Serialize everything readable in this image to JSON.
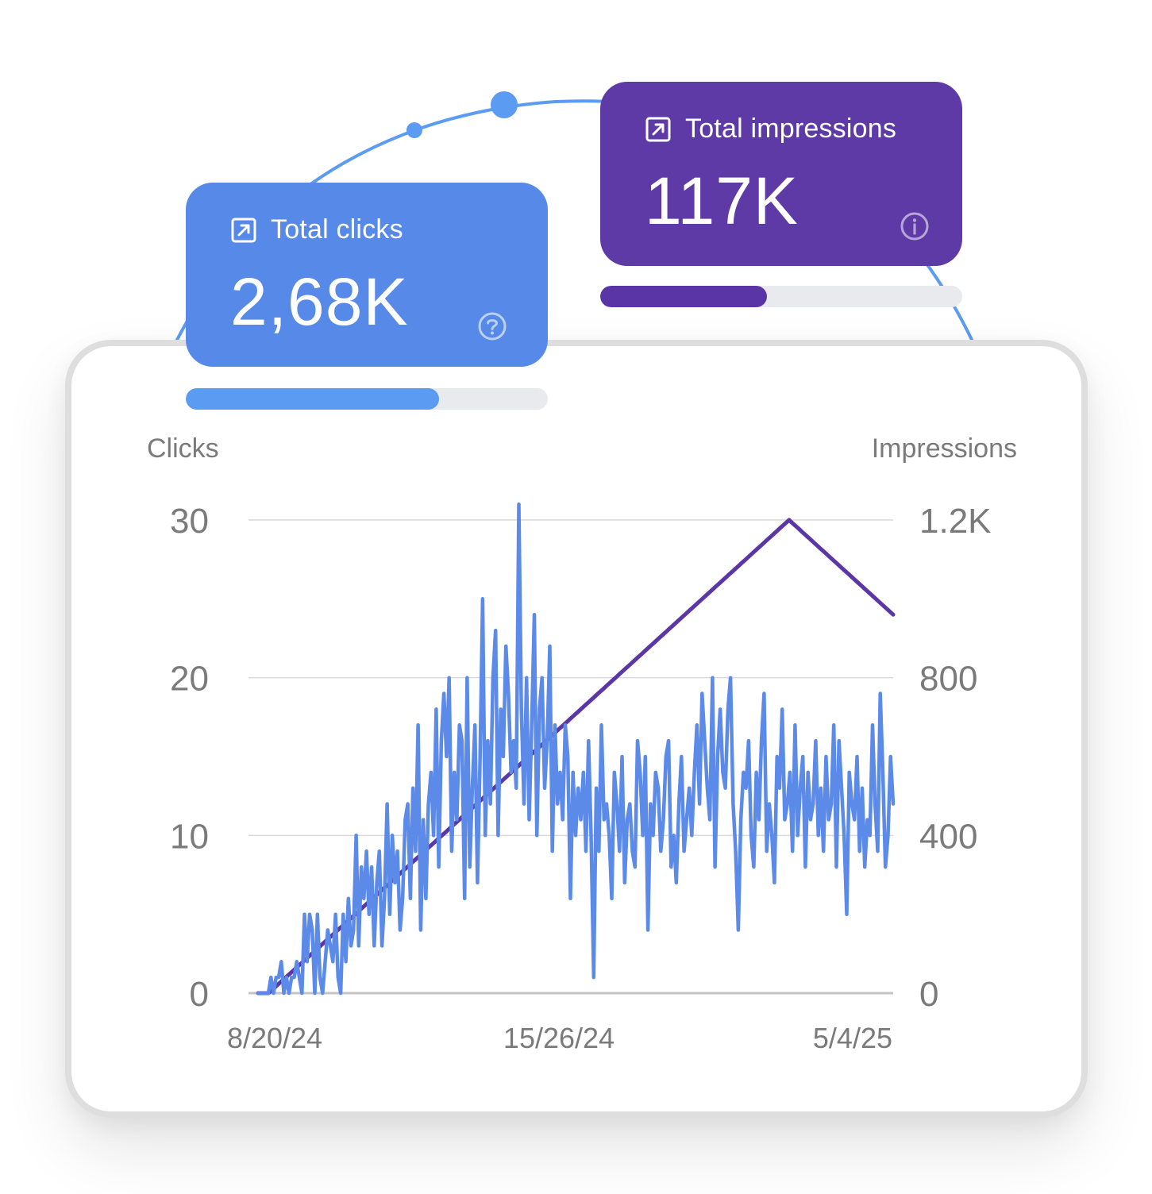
{
  "metrics": {
    "clicks": {
      "label": "Total clicks",
      "value": "2,68K",
      "color": "#5789e8",
      "progress_fraction": 0.7,
      "progress_color": "#5b9cf2",
      "icon": "external-link-icon",
      "help_icon": "help-circle-icon"
    },
    "impressions": {
      "label": "Total impressions",
      "value": "117K",
      "color": "#5e3aa7",
      "progress_fraction": 0.46,
      "progress_color": "#5a35a5",
      "icon": "external-link-icon",
      "help_icon": "info-circle-icon"
    }
  },
  "chart_data": {
    "type": "line",
    "left_axis": {
      "title": "Clicks",
      "ticks": [
        "0",
        "10",
        "20",
        "30"
      ],
      "range": [
        0,
        30
      ]
    },
    "right_axis": {
      "title": "Impressions",
      "ticks": [
        "0",
        "400",
        "800",
        "1.2K"
      ],
      "range": [
        0,
        1200
      ]
    },
    "x_ticks": [
      "8/20/24",
      "15/26/24",
      "5/4/25"
    ],
    "grid": true,
    "colors": {
      "clicks": "#5b8ae8",
      "impressions": "#5a36a6"
    },
    "series": [
      {
        "key": "clicks",
        "axis": "left",
        "color": "#5b8ae8",
        "values": [
          0,
          0,
          0,
          0,
          0,
          1,
          0,
          1,
          1,
          2,
          0,
          1,
          0,
          1,
          1,
          2,
          1,
          0,
          5,
          2,
          5,
          4,
          0,
          5,
          1,
          0,
          2,
          4,
          3,
          2,
          5,
          1,
          0,
          5,
          2,
          6,
          3,
          4,
          10,
          3,
          8,
          6,
          9,
          5,
          8,
          3,
          7,
          9,
          3,
          6,
          12,
          5,
          10,
          7,
          9,
          4,
          6,
          11,
          12,
          6,
          13,
          9,
          17,
          4,
          11,
          6,
          12,
          14,
          10,
          18,
          8,
          16,
          19,
          15,
          20,
          9,
          14,
          11,
          17,
          16,
          6,
          20,
          8,
          13,
          17,
          7,
          15,
          25,
          10,
          16,
          12,
          20,
          23,
          10,
          18,
          15,
          22,
          19,
          14,
          16,
          13,
          31,
          18,
          12,
          20,
          11,
          17,
          24,
          10,
          18,
          20,
          13,
          16,
          22,
          9,
          17,
          12,
          14,
          11,
          17,
          15,
          6,
          14,
          10,
          13,
          11,
          14,
          9,
          16,
          10,
          1,
          13,
          9,
          17,
          11,
          12,
          10,
          6,
          14,
          12,
          9,
          15,
          7,
          11,
          12,
          9,
          8,
          16,
          14,
          10,
          15,
          4,
          12,
          10,
          14,
          13,
          9,
          11,
          15,
          16,
          8,
          10,
          7,
          12,
          15,
          9,
          11,
          13,
          10,
          14,
          17,
          12,
          19,
          16,
          13,
          11,
          20,
          8,
          15,
          18,
          14,
          13,
          18,
          20,
          12,
          9,
          4,
          11,
          14,
          13,
          16,
          10,
          8,
          14,
          11,
          16,
          19,
          9,
          12,
          10,
          7,
          15,
          13,
          18,
          11,
          12,
          14,
          9,
          17,
          10,
          13,
          15,
          8,
          14,
          11,
          12,
          16,
          10,
          13,
          9,
          15,
          11,
          12,
          17,
          8,
          16,
          13,
          10,
          5,
          14,
          12,
          11,
          15,
          9,
          13,
          8,
          11,
          10,
          17,
          12,
          9,
          19,
          14,
          8,
          10,
          15,
          12
        ]
      },
      {
        "key": "impressions",
        "axis": "right",
        "color": "#5a36a6",
        "values": [
          0,
          0,
          0,
          0,
          0,
          6,
          12,
          18,
          24,
          30,
          36,
          42,
          48,
          54,
          60,
          66,
          72,
          78,
          84,
          90,
          96,
          102,
          108,
          114,
          120,
          126,
          132,
          138,
          144,
          150,
          156,
          162,
          168,
          174,
          180,
          186,
          192,
          198,
          204,
          210,
          216,
          222,
          228,
          234,
          240,
          246,
          252,
          258,
          264,
          270,
          276,
          282,
          288,
          294,
          300,
          306,
          312,
          318,
          324,
          330,
          336,
          342,
          348,
          354,
          360,
          366,
          372,
          378,
          384,
          390,
          396,
          402,
          408,
          414,
          420,
          426,
          432,
          438,
          444,
          450,
          456,
          462,
          468,
          474,
          480,
          486,
          492,
          498,
          504,
          510,
          516,
          522,
          528,
          534,
          540,
          546,
          552,
          558,
          564,
          570,
          576,
          582,
          588,
          594,
          600,
          606,
          612,
          618,
          624,
          630,
          636,
          642,
          648,
          654,
          660,
          666,
          672,
          678,
          684,
          690,
          696,
          702,
          708,
          714,
          720,
          726,
          732,
          738,
          744,
          750,
          756,
          762,
          768,
          774,
          780,
          786,
          792,
          798,
          804,
          810,
          816,
          822,
          828,
          834,
          840,
          846,
          852,
          858,
          864,
          870,
          876,
          882,
          888,
          894,
          900,
          906,
          912,
          918,
          924,
          930,
          936,
          942,
          948,
          954,
          960,
          966,
          972,
          978,
          984,
          990,
          996,
          1002,
          1008,
          1014,
          1020,
          1026,
          1032,
          1038,
          1044,
          1050,
          1056,
          1062,
          1068,
          1074,
          1080,
          1086,
          1092,
          1098,
          1104,
          1110,
          1116,
          1122,
          1128,
          1134,
          1140,
          1146,
          1152,
          1158,
          1164,
          1170,
          1176,
          1182,
          1188,
          1194,
          1200,
          1194,
          1188,
          1182,
          1176,
          1170,
          1164,
          1158,
          1152,
          1146,
          1140,
          1134,
          1128,
          1122,
          1116,
          1110,
          1104,
          1098,
          1092,
          1086,
          1080,
          1074,
          1068,
          1062,
          1056,
          1050,
          1044,
          1038,
          1032,
          1026,
          1020,
          1014,
          1008,
          1002,
          996,
          990,
          984,
          978,
          972,
          966,
          960
        ]
      }
    ]
  }
}
